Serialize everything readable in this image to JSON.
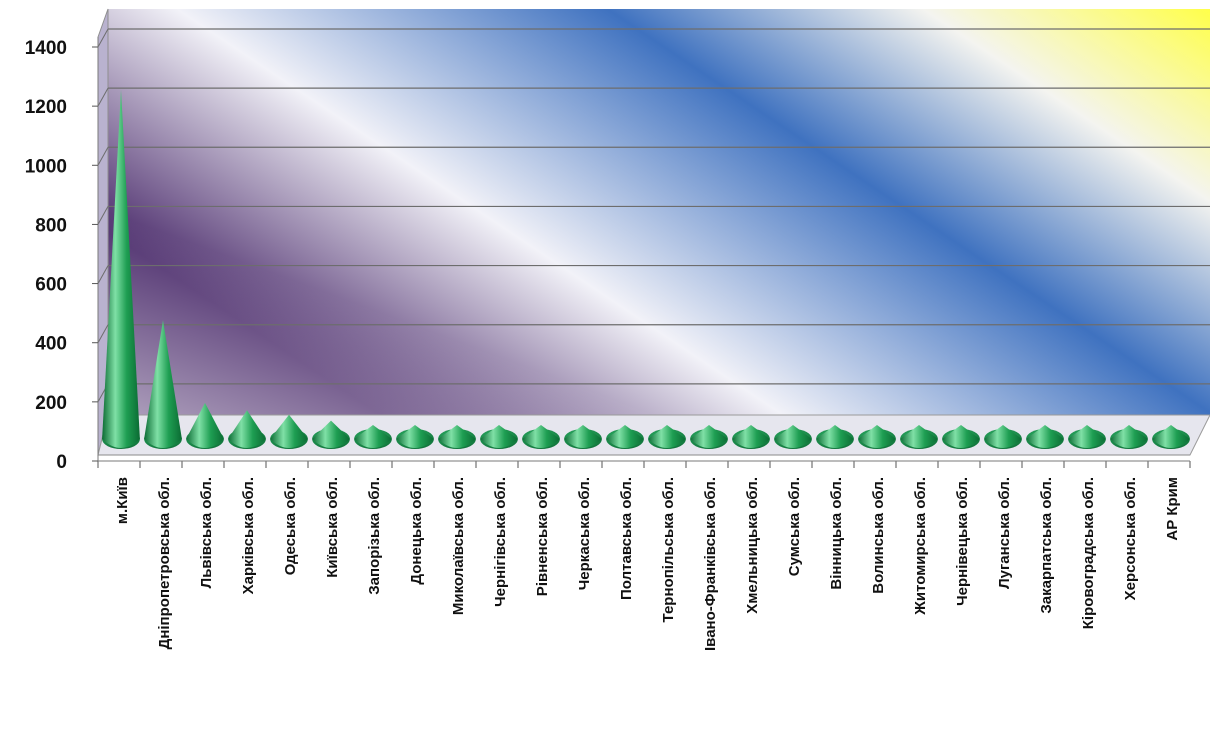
{
  "chart_data": {
    "type": "bar",
    "bar_shape": "cone-3d",
    "title": "",
    "xlabel": "",
    "ylabel": "",
    "ylim": [
      0,
      1400
    ],
    "yticks": [
      0,
      200,
      400,
      600,
      800,
      1000,
      1200,
      1400
    ],
    "ytick_labels": [
      "0",
      "200",
      "400",
      "600",
      "800",
      "1000",
      "1200",
      "1400"
    ],
    "grid": true,
    "legend": "none",
    "categories": [
      "м.Київ",
      "Дніпропетровська обл.",
      "Львівська обл.",
      "Харківська обл.",
      "Одеська обл.",
      "Київська обл.",
      "Запорізька обл.",
      "Донецька обл.",
      "Миколаївська обл.",
      "Чернігівська обл.",
      "Рівненська обл.",
      "Черкаська обл.",
      "Полтавська обл.",
      "Тернопільська обл.",
      "Івано-Франківська обл.",
      "Хмельницька обл.",
      "Сумська обл.",
      "Вінницька обл.",
      "Волинська обл.",
      "Житомирська обл.",
      "Чернівецька обл.",
      "Луганська обл.",
      "Закарпатська обл.",
      "Кіровоградська обл.",
      "Херсонська обл.",
      "АР Крим"
    ],
    "values": [
      1270,
      490,
      210,
      185,
      170,
      150,
      60,
      55,
      50,
      45,
      40,
      40,
      35,
      35,
      30,
      30,
      30,
      25,
      25,
      25,
      20,
      20,
      20,
      15,
      15,
      10
    ],
    "colors": {
      "cone_dark": "#0b6b33",
      "cone_mid": "#1e9e52",
      "cone_light": "#7fe0a6",
      "background_stops": [
        "#4e2f6e",
        "#f2f2f8",
        "#3f72c0",
        "#f4f4f0",
        "#ffff4a"
      ],
      "gridline": "#6d6d6d"
    }
  }
}
